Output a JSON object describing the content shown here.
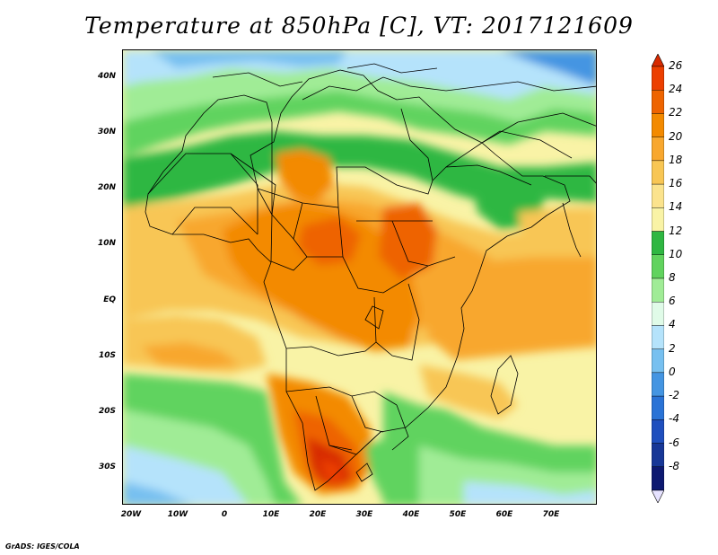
{
  "title": "Temperature at 850hPa [C], VT: 2017121609",
  "credit": "GrADS: IGES/COLA",
  "map": {
    "region": "Africa, Arabian Peninsula and western Indian Ocean",
    "variable": "850 hPa temperature",
    "units": "C",
    "lat_range": [
      -36,
      45
    ],
    "lon_range": [
      -22,
      80
    ],
    "lat_labels": [
      "40N",
      "30N",
      "20N",
      "10N",
      "EQ",
      "10S",
      "20S",
      "30S"
    ],
    "lon_labels": [
      "20W",
      "10W",
      "0",
      "10E",
      "20E",
      "30E",
      "40E",
      "50E",
      "60E",
      "70E"
    ]
  },
  "colorbar": {
    "levels": [
      "26",
      "24",
      "22",
      "20",
      "18",
      "16",
      "14",
      "12",
      "10",
      "8",
      "6",
      "4",
      "2",
      "0",
      "-2",
      "-4",
      "-6",
      "-8"
    ],
    "colors": [
      "#d72a00",
      "#ec3f00",
      "#ee6400",
      "#f38a00",
      "#f8a72e",
      "#f8c654",
      "#fbe38d",
      "#f9f3a6",
      "#2fb742",
      "#61d35e",
      "#a0ec96",
      "#e0fbe8",
      "#b5e3fb",
      "#77c0f0",
      "#4495e2",
      "#2a73d6",
      "#1f4fbe",
      "#173797",
      "#0d1971",
      "#e6e2ff"
    ]
  }
}
